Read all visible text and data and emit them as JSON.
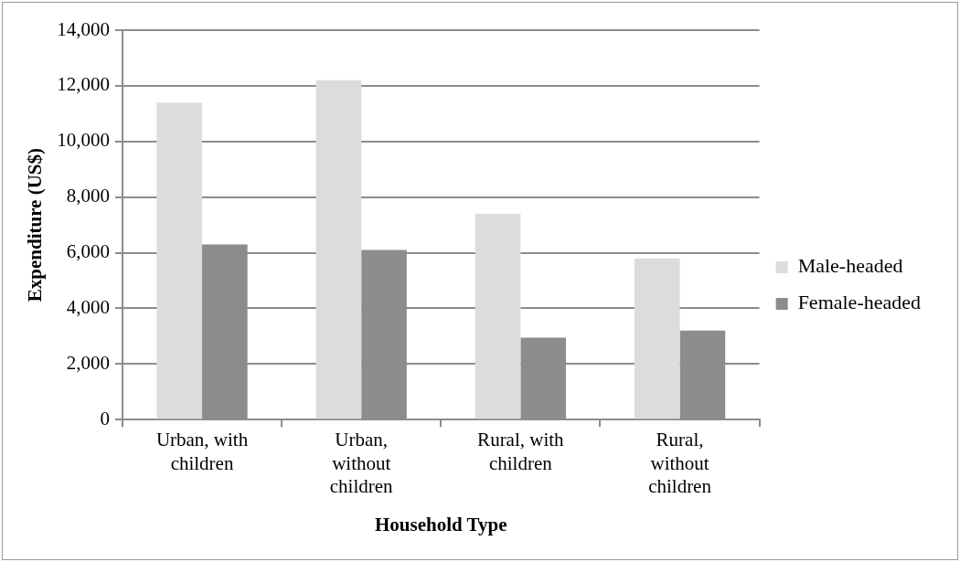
{
  "chart_data": {
    "type": "bar",
    "xlabel": "Household Type",
    "ylabel": "Expenditure (US$)",
    "categories": [
      "Urban, with children",
      "Urban, without children",
      "Rural, with children",
      "Rural, without children"
    ],
    "series": [
      {
        "name": "Male-headed",
        "color": "#dcdcdc",
        "values": [
          11400,
          12200,
          7400,
          5800
        ]
      },
      {
        "name": "Female-headed",
        "color": "#8c8c8c",
        "values": [
          6300,
          6100,
          2950,
          3200
        ]
      }
    ],
    "ylim": [
      0,
      14000
    ],
    "yticks": [
      0,
      {
        "value": 2000,
        "label": "2,000"
      },
      {
        "value": 4000,
        "label": "4,000"
      },
      {
        "value": 6000,
        "label": "6,000"
      },
      {
        "value": 8000,
        "label": "8,000"
      },
      {
        "value": 10000,
        "label": "10,000"
      },
      {
        "value": 12000,
        "label": "12,000"
      },
      {
        "value": 14000,
        "label": "14,000"
      }
    ],
    "grid": "y",
    "legend": "right"
  }
}
